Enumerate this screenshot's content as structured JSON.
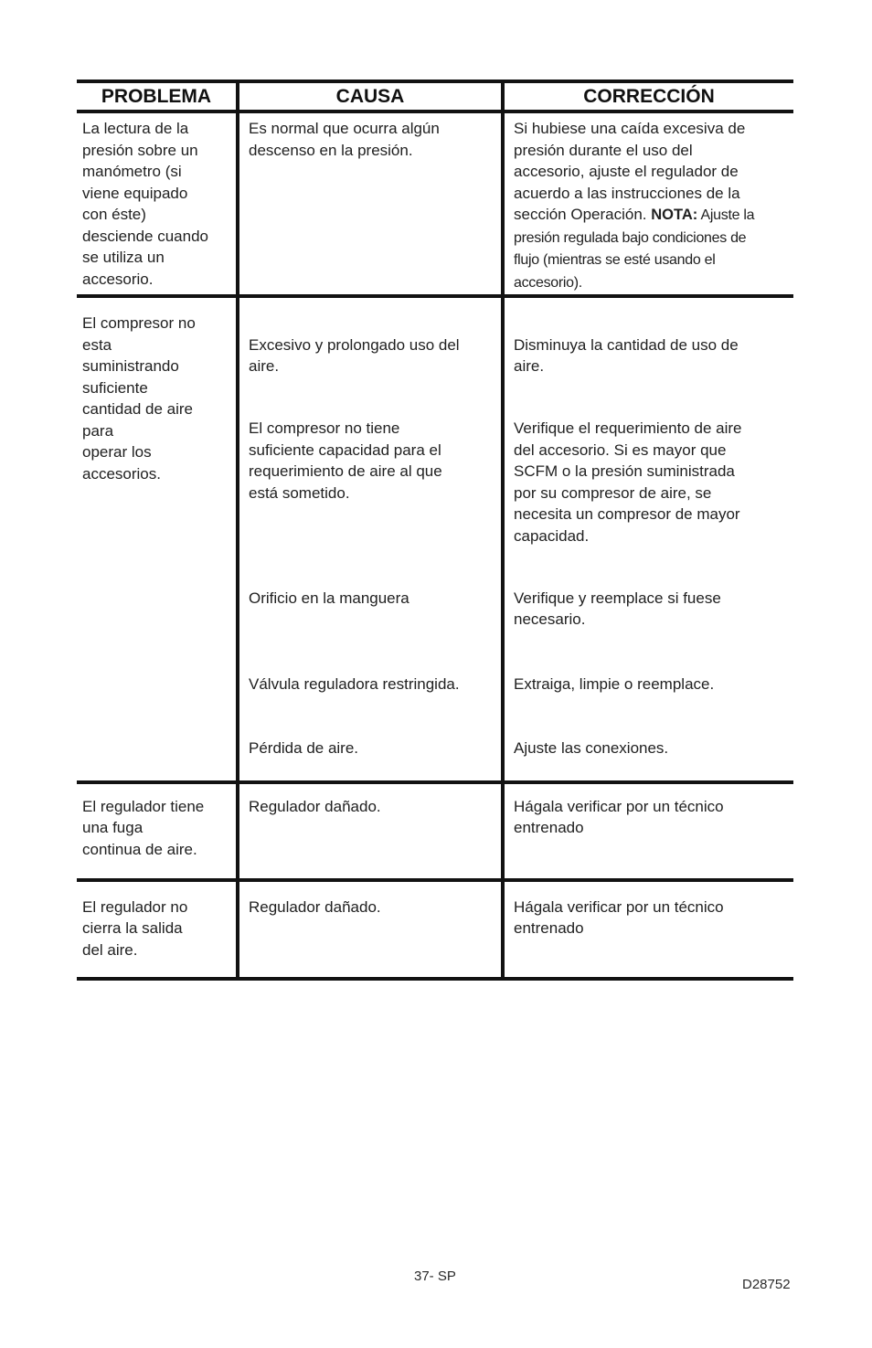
{
  "colors": {
    "ink": "#1e1e1e",
    "rule": "#121212",
    "paper": "#ffffff"
  },
  "footer": {
    "page_number": "37- SP",
    "doc_number": "D28752"
  },
  "table": {
    "headers": [
      "PROBLEMA",
      "CAUSA",
      "CORRECCIÓN"
    ],
    "rows": [
      {
        "problem": "La lectura de la\npresión sobre un\nmanómetro (si\nviene equipado\ncon éste)\ndesciende cuando\nse utiliza un\naccesorio.",
        "cause": "Es normal que ocurra algún\ndescenso en la presión.",
        "correction": {
          "before": "Si hubiese una caída excesiva de\npresión durante el uso del\naccesorio, ajuste el regulador de\nacuerdo a las instrucciones de la\nsección Operación. ",
          "nota_label": "NOTA:",
          "after": " Ajuste la\npresión regulada bajo condiciones de\nflujo (mientras se esté usando el\naccesorio)."
        }
      },
      {
        "problem": "El compresor no\nesta\nsuministrando\nsuficiente\ncantidad de aire\npara\noperar los\naccesorios.",
        "items": [
          {
            "cause": "Excesivo y prolongado uso del\naire.",
            "correction": "Disminuya la cantidad de uso de\naire."
          },
          {
            "cause": "El compresor no tiene\nsuficiente capacidad para el\nrequerimiento de aire al que\nestá sometido.",
            "correction": "Verifique el requerimiento de aire\ndel accesorio. Si es mayor que\nSCFM o la presión suministrada\npor su compresor de aire, se\nnecesita un compresor de mayor\ncapacidad."
          },
          {
            "cause": "Orificio en la manguera",
            "correction": "Verifique y reemplace si fuese\nnecesario."
          },
          {
            "cause": "Válvula reguladora restringida.",
            "correction": "Extraiga, limpie o reemplace."
          },
          {
            "cause": "Pérdida de aire.",
            "correction": "Ajuste las conexiones."
          }
        ]
      },
      {
        "problem": "El regulador tiene\nuna fuga\ncontinua de aire.",
        "cause": "Regulador dañado.",
        "correction": "Hágala verificar por un técnico\nentrenado"
      },
      {
        "problem": "El regulador no\ncierra la salida\ndel aire.",
        "cause": "Regulador dañado.",
        "correction": "Hágala verificar por un técnico\nentrenado"
      }
    ]
  }
}
